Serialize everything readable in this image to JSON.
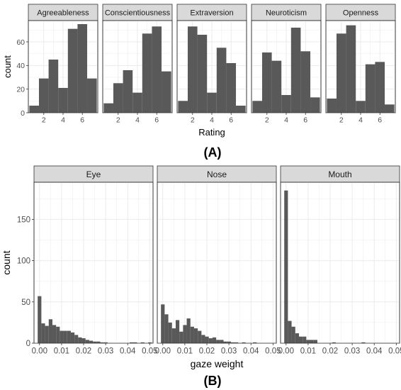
{
  "chart_data": [
    {
      "type": "histogram",
      "panel_label": "(A)",
      "xlabel": "Rating",
      "ylabel": "count",
      "x_ticks": [
        2,
        4,
        6
      ],
      "y_ticks": [
        0,
        20,
        40,
        60
      ],
      "xlim": [
        0.4,
        7.6
      ],
      "ylim": [
        0,
        78
      ],
      "grid": true,
      "colors": {
        "bar": "#595959",
        "panel_bg": "#ffffff",
        "grid": "#ebebeb",
        "strip_bg": "#d9d9d9",
        "strip_border": "#333333"
      },
      "categories": [
        1,
        2,
        3,
        4,
        5,
        6,
        7
      ],
      "series": [
        {
          "name": "Agreeableness",
          "values": [
            6,
            29,
            45,
            21,
            71,
            75,
            29
          ]
        },
        {
          "name": "Conscientiousness",
          "values": [
            8,
            25,
            36,
            17,
            67,
            73,
            35
          ]
        },
        {
          "name": "Extraversion",
          "values": [
            10,
            73,
            66,
            17,
            55,
            42,
            6
          ]
        },
        {
          "name": "Neuroticism",
          "values": [
            10,
            51,
            44,
            15,
            72,
            52,
            13
          ]
        },
        {
          "name": "Openness",
          "values": [
            12,
            67,
            74,
            10,
            41,
            43,
            7
          ]
        }
      ]
    },
    {
      "type": "histogram",
      "panel_label": "(B)",
      "xlabel": "gaze weight",
      "ylabel": "count",
      "x_ticks": [
        0,
        0.01,
        0.02,
        0.03,
        0.04,
        0.05
      ],
      "x_tick_labels": [
        "0.00",
        "0.01",
        "0.02",
        "0.03",
        "0.04",
        "0.05"
      ],
      "y_ticks": [
        0,
        50,
        100,
        150
      ],
      "xlim": [
        -0.0025,
        0.0515
      ],
      "ylim": [
        0,
        195
      ],
      "bin_width": 0.00167,
      "bin_start": -0.000833,
      "grid": true,
      "colors": {
        "bar": "#595959",
        "panel_bg": "#ffffff",
        "grid": "#ebebeb",
        "strip_bg": "#d9d9d9",
        "strip_border": "#333333"
      },
      "series": [
        {
          "name": "Eye",
          "values": [
            57,
            24,
            21,
            29,
            22,
            20,
            15,
            15,
            15,
            13,
            10,
            7,
            6,
            4,
            3,
            2,
            2,
            1,
            1,
            0,
            0,
            0,
            0,
            0,
            0,
            1,
            1,
            0,
            1,
            0,
            1
          ]
        },
        {
          "name": "Nose",
          "values": [
            47,
            35,
            25,
            18,
            28,
            14,
            22,
            30,
            20,
            18,
            15,
            10,
            8,
            6,
            7,
            4,
            4,
            2,
            2,
            1,
            1,
            0,
            1,
            0,
            0,
            1,
            0,
            0,
            0,
            0,
            0
          ]
        },
        {
          "name": "Mouth",
          "values": [
            185,
            27,
            20,
            12,
            8,
            8,
            4,
            4,
            4,
            0,
            0,
            0,
            0,
            1,
            0,
            0,
            0,
            0,
            0,
            0,
            0,
            1,
            0,
            0,
            0,
            0,
            0,
            0,
            0,
            0,
            0
          ]
        }
      ]
    }
  ]
}
